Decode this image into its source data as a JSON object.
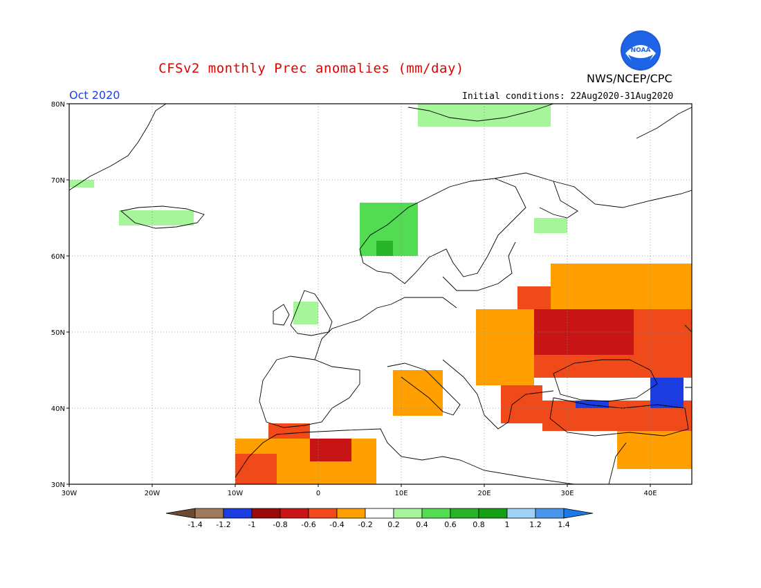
{
  "title": "CFSv2 monthly Prec anomalies (mm/day)",
  "organization": "NWS/NCEP/CPC",
  "logo_text": "NOAA",
  "month": "Oct 2020",
  "initial_conditions": "Initial conditions: 22Aug2020-31Aug2020",
  "map": {
    "lon_range": [
      -30,
      45
    ],
    "lat_range": [
      30,
      80
    ],
    "grid": true,
    "lon_ticks": [
      {
        "value": -30,
        "label": "30W"
      },
      {
        "value": -20,
        "label": "20W"
      },
      {
        "value": -10,
        "label": "10W"
      },
      {
        "value": 0,
        "label": "0"
      },
      {
        "value": 10,
        "label": "10E"
      },
      {
        "value": 20,
        "label": "20E"
      },
      {
        "value": 30,
        "label": "30E"
      },
      {
        "value": 40,
        "label": "40E"
      }
    ],
    "lat_ticks": [
      {
        "value": 30,
        "label": "30N"
      },
      {
        "value": 40,
        "label": "40N"
      },
      {
        "value": 50,
        "label": "50N"
      },
      {
        "value": 60,
        "label": "60N"
      },
      {
        "value": 70,
        "label": "70N"
      },
      {
        "value": 80,
        "label": "80N"
      }
    ]
  },
  "colorbar": {
    "labels": [
      "-1.4",
      "-1.2",
      "-1",
      "-0.8",
      "-0.6",
      "-0.4",
      "-0.2",
      "0.2",
      "0.4",
      "0.6",
      "0.8",
      "1",
      "1.2",
      "1.4"
    ],
    "colors": [
      "#a0785a",
      "#1a3ce0",
      "#9a0a0a",
      "#c81414",
      "#f04a1a",
      "#ffa000",
      "#ffffff",
      "#a6f59a",
      "#52dc52",
      "#28b428",
      "#14a014",
      "#a0d2f5",
      "#4696ec"
    ],
    "under_color": "#6e4a32",
    "over_color": "#1e78e6"
  },
  "anomaly_regions": [
    {
      "name": "western-russia",
      "color": "#f04a1a",
      "lon": [
        24,
        45
      ],
      "lat": [
        44,
        56
      ]
    },
    {
      "name": "ukraine-core",
      "color": "#c81414",
      "lon": [
        26,
        38
      ],
      "lat": [
        47,
        53
      ]
    },
    {
      "name": "eastern-europe",
      "color": "#ffa000",
      "lon": [
        19,
        26
      ],
      "lat": [
        43,
        53
      ]
    },
    {
      "name": "central-russia",
      "color": "#ffa000",
      "lon": [
        28,
        45
      ],
      "lat": [
        53,
        59
      ]
    },
    {
      "name": "turkey-band",
      "color": "#f04a1a",
      "lon": [
        27,
        45
      ],
      "lat": [
        37,
        41
      ]
    },
    {
      "name": "levant",
      "color": "#ffa000",
      "lon": [
        36,
        45
      ],
      "lat": [
        32,
        37
      ]
    },
    {
      "name": "balkans",
      "color": "#f04a1a",
      "lon": [
        22,
        27
      ],
      "lat": [
        38,
        43
      ]
    },
    {
      "name": "north-africa-west",
      "color": "#ffa000",
      "lon": [
        -10,
        7
      ],
      "lat": [
        30,
        36
      ]
    },
    {
      "name": "morocco",
      "color": "#f04a1a",
      "lon": [
        -10,
        -5
      ],
      "lat": [
        30,
        34
      ]
    },
    {
      "name": "algeria-core",
      "color": "#c81414",
      "lon": [
        -1,
        4
      ],
      "lat": [
        33,
        36
      ]
    },
    {
      "name": "spain-south",
      "color": "#f04a1a",
      "lon": [
        -6,
        -1
      ],
      "lat": [
        36,
        38
      ]
    },
    {
      "name": "italy-adriatic",
      "color": "#ffa000",
      "lon": [
        9,
        15
      ],
      "lat": [
        39,
        45
      ]
    },
    {
      "name": "black-sea-blue",
      "color": "#1a3ce0",
      "lon": [
        31,
        35
      ],
      "lat": [
        40,
        41
      ]
    },
    {
      "name": "caucasus-blue",
      "color": "#1a3ce0",
      "lon": [
        40,
        44
      ],
      "lat": [
        40,
        44
      ]
    },
    {
      "name": "norway-coast",
      "color": "#52dc52",
      "lon": [
        5,
        12
      ],
      "lat": [
        60,
        67
      ]
    },
    {
      "name": "norway-dark",
      "color": "#28b428",
      "lon": [
        7,
        9
      ],
      "lat": [
        60,
        62
      ]
    },
    {
      "name": "svalbard",
      "color": "#a6f59a",
      "lon": [
        12,
        28
      ],
      "lat": [
        77,
        80
      ]
    },
    {
      "name": "iceland",
      "color": "#a6f59a",
      "lon": [
        -24,
        -15
      ],
      "lat": [
        64,
        66
      ]
    },
    {
      "name": "greenland-east",
      "color": "#a6f59a",
      "lon": [
        -30,
        -27
      ],
      "lat": [
        69,
        70
      ]
    },
    {
      "name": "britain",
      "color": "#a6f59a",
      "lon": [
        -3,
        0
      ],
      "lat": [
        51,
        54
      ]
    },
    {
      "name": "finland-light",
      "color": "#a6f59a",
      "lon": [
        26,
        30
      ],
      "lat": [
        63,
        65
      ]
    }
  ]
}
